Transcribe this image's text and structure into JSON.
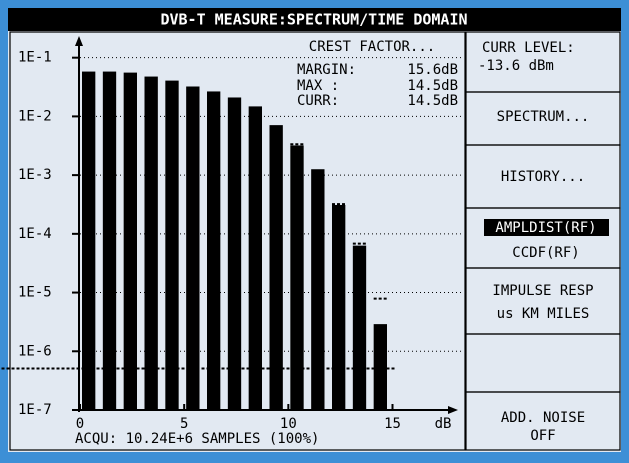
{
  "header": {
    "title": "DVB-T MEASURE:SPECTRUM/TIME DOMAIN"
  },
  "chart_data": {
    "type": "histogram",
    "log_y": true,
    "grid": true,
    "color": "#000000",
    "bins": [
      0,
      1,
      2,
      3,
      4,
      5,
      6,
      7,
      8,
      9,
      10,
      11,
      12,
      13,
      14,
      15
    ],
    "values": [
      0.058,
      0.058,
      0.0557,
      0.0477,
      0.0407,
      0.0323,
      0.0266,
      0.021,
      0.0148,
      0.0071,
      0.0032,
      0.00126,
      0.00031,
      6.3e-05,
      2.9e-06,
      3.4e-07
    ],
    "marker_values": [
      null,
      null,
      null,
      null,
      null,
      null,
      null,
      null,
      null,
      null,
      0.00335,
      null,
      0.00032,
      6.8e-05,
      7.9e-06,
      5.1e-07
    ],
    "xlim": [
      0,
      18
    ],
    "xticks": [
      0,
      5,
      10,
      15
    ],
    "xlabel": "dB",
    "ylim": [
      1e-07,
      0.2
    ],
    "yticks": [
      {
        "value": 0.1,
        "label": "1E-1"
      },
      {
        "value": 0.01,
        "label": "1E-2"
      },
      {
        "value": 0.001,
        "label": "1E-3"
      },
      {
        "value": 0.0001,
        "label": "1E-4"
      },
      {
        "value": 1e-05,
        "label": "1E-5"
      },
      {
        "value": 1e-06,
        "label": "1E-6"
      },
      {
        "value": 1e-07,
        "label": "1E-7"
      }
    ],
    "annotations": {
      "crest": "CREST FACTOR...",
      "margin_label": "MARGIN:",
      "margin": "15.6dB",
      "max_label": "MAX :",
      "max": "14.5dB",
      "curr_label": "CURR:",
      "curr": "14.5dB"
    },
    "footer": "ACQU: 10.24E+6 SAMPLES (100%)"
  },
  "side_panel": {
    "level_label": "CURR LEVEL:",
    "level": "-13.6 dBm",
    "buttons": [
      "SPECTRUM...",
      "HISTORY...",
      "AMPLDIST(RF)",
      "CCDF(RF)",
      "IMPULSE RESP",
      "us KM MILES",
      "ADD. NOISE",
      "OFF"
    ]
  }
}
